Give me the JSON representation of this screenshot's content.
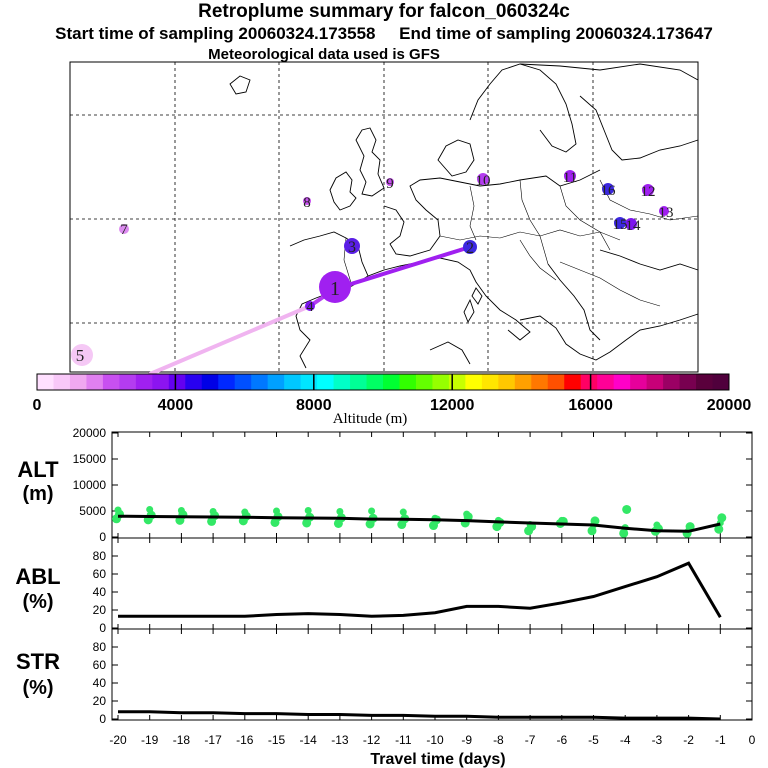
{
  "header": {
    "title": "Retroplume summary for falcon_060324c",
    "sampling_line": "Start time of sampling 20060324.173558     End time of sampling 20060324.173647",
    "met_line": "Meteorological data used is GFS"
  },
  "map": {
    "plume_points": [
      {
        "label": "1",
        "color": "#a020f0"
      },
      {
        "label": "2",
        "color": "#3c28e0"
      },
      {
        "label": "3",
        "color": "#5a1ee6"
      },
      {
        "label": "4",
        "color": "#7d14f0"
      },
      {
        "label": "5",
        "color": "#f5c8f5"
      },
      {
        "label": "7",
        "color": "#dc8cf0"
      },
      {
        "label": "8",
        "color": "#c850f0"
      },
      {
        "label": "9",
        "color": "#c850f0"
      },
      {
        "label": "10",
        "color": "#b43cf0"
      },
      {
        "label": "11",
        "color": "#a020f0"
      },
      {
        "label": "12",
        "color": "#a020f0"
      },
      {
        "label": "13",
        "color": "#a020f0"
      },
      {
        "label": "14",
        "color": "#7d14f0"
      },
      {
        "label": "15",
        "color": "#3c28e0"
      },
      {
        "label": "16",
        "color": "#3c28e0"
      }
    ]
  },
  "colorbar": {
    "label": "Altitude (m)",
    "ticks": [
      "0",
      "4000",
      "8000",
      "12000",
      "16000",
      "20000"
    ],
    "colors": [
      "#ffe0ff",
      "#f8c8f8",
      "#f0a8f0",
      "#e080f0",
      "#c850f0",
      "#b43cf0",
      "#a020f0",
      "#8c14f0",
      "#6400f0",
      "#2800f0",
      "#0000e6",
      "#0028ff",
      "#0050ff",
      "#0078ff",
      "#00a0ff",
      "#00c8ff",
      "#00e6ff",
      "#00ffff",
      "#00ffc8",
      "#00ff96",
      "#00ff64",
      "#00ff32",
      "#32ff00",
      "#64ff00",
      "#96ff00",
      "#c8ff00",
      "#ffff00",
      "#ffe600",
      "#ffc800",
      "#ffa000",
      "#ff7800",
      "#ff5000",
      "#ff0000",
      "#ff0064",
      "#ff0096",
      "#ff00c8",
      "#e6009b",
      "#c80078",
      "#9b0064",
      "#780050",
      "#5a003c",
      "#50003c"
    ]
  },
  "chart_data": [
    {
      "type": "line",
      "title": "ALT (m)",
      "ylabel": "ALT (m)",
      "xlabel": "Travel time (days)",
      "x": [
        -20,
        -19,
        -18,
        -17,
        -16,
        -15,
        -14,
        -13,
        -12,
        -11,
        -10,
        -9,
        -8,
        -7,
        -6,
        -5,
        -4,
        -3,
        -2,
        -1
      ],
      "ylim": [
        0,
        20000
      ],
      "yticks": [
        "0",
        "5000",
        "10000",
        "15000",
        "20000"
      ],
      "series": [
        {
          "name": "mean altitude",
          "values": [
            4000,
            3950,
            3900,
            3850,
            3800,
            3700,
            3650,
            3600,
            3450,
            3400,
            3300,
            3150,
            2900,
            2700,
            2500,
            2300,
            1700,
            1200,
            1100,
            2500
          ]
        }
      ],
      "scatter_altitudes": [
        [
          3500,
          5200,
          4400
        ],
        [
          3300,
          5300,
          4200
        ],
        [
          3200,
          5100,
          4300
        ],
        [
          3000,
          4900,
          4100
        ],
        [
          3100,
          4800,
          4000
        ],
        [
          2800,
          5000,
          3900
        ],
        [
          2700,
          5100,
          3800
        ],
        [
          2600,
          4900,
          3700
        ],
        [
          2500,
          5000,
          3600
        ],
        [
          2400,
          4800,
          3500
        ],
        [
          2200,
          3600,
          3300
        ],
        [
          2700,
          4400,
          3900
        ],
        [
          2000,
          3200,
          2800
        ],
        [
          1200,
          2400,
          2000
        ],
        [
          2600,
          3200,
          3000
        ],
        [
          1200,
          2300,
          3100
        ],
        [
          700,
          1800,
          5300
        ],
        [
          1100,
          2300,
          1600
        ],
        [
          700,
          1200,
          2000
        ],
        [
          1500,
          2700,
          3700
        ]
      ]
    },
    {
      "type": "line",
      "title": "ABL (%)",
      "ylabel": "ABL (%)",
      "x": [
        -20,
        -19,
        -18,
        -17,
        -16,
        -15,
        -14,
        -13,
        -12,
        -11,
        -10,
        -9,
        -8,
        -7,
        -6,
        -5,
        -4,
        -3,
        -2,
        -1
      ],
      "ylim": [
        0,
        100
      ],
      "yticks": [
        "0",
        "20",
        "40",
        "60",
        "80"
      ],
      "series": [
        {
          "name": "ABL",
          "values": [
            13,
            13,
            13,
            13,
            13,
            15,
            16,
            15,
            13,
            14,
            17,
            24,
            24,
            22,
            28,
            35,
            46,
            57,
            72,
            12
          ]
        }
      ]
    },
    {
      "type": "line",
      "title": "STR (%)",
      "ylabel": "STR (%)",
      "x": [
        -20,
        -19,
        -18,
        -17,
        -16,
        -15,
        -14,
        -13,
        -12,
        -11,
        -10,
        -9,
        -8,
        -7,
        -6,
        -5,
        -4,
        -3,
        -2,
        -1
      ],
      "ylim": [
        0,
        100
      ],
      "yticks": [
        "0",
        "20",
        "40",
        "60",
        "80"
      ],
      "xticks": [
        "-20",
        "-19",
        "-18",
        "-17",
        "-16",
        "-15",
        "-14",
        "-13",
        "-12",
        "-11",
        "-10",
        "-9",
        "-8",
        "-7",
        "-6",
        "-5",
        "-4",
        "-3",
        "-2",
        "-1",
        "0"
      ],
      "series": [
        {
          "name": "STR",
          "values": [
            8,
            8,
            7,
            7,
            6,
            6,
            5,
            5,
            4,
            4,
            3,
            3,
            2,
            2,
            2,
            2,
            1,
            1,
            1,
            0
          ]
        }
      ]
    }
  ],
  "panels": {
    "alt_label_1": "ALT",
    "alt_label_2": "(m)",
    "abl_label_1": "ABL",
    "abl_label_2": "(%)",
    "str_label_1": "STR",
    "str_label_2": "(%)",
    "xlabel": "Travel time (days)"
  },
  "colors": {
    "scatter": "#33e866",
    "line": "#000000"
  }
}
